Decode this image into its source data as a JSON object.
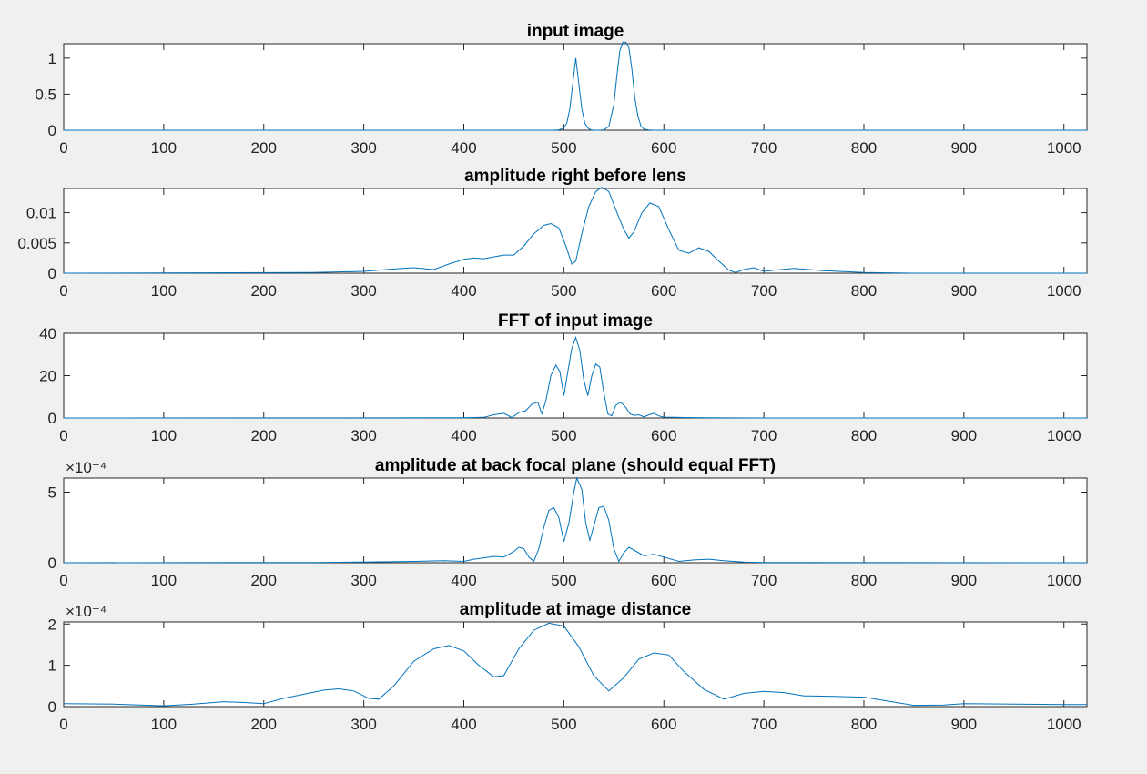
{
  "chart_data": [
    {
      "type": "line",
      "title": "input image",
      "xlim": [
        0,
        1023
      ],
      "ylim": [
        0,
        1.2
      ],
      "xticks": [
        0,
        100,
        200,
        300,
        400,
        500,
        600,
        700,
        800,
        900,
        1000
      ],
      "xtick_labels": [
        "0",
        "100",
        "200",
        "300",
        "400",
        "500",
        "600",
        "700",
        "800",
        "900",
        "1000"
      ],
      "yticks": [
        0,
        0.5,
        1
      ],
      "ytick_labels": [
        "0",
        "0.5",
        "1"
      ],
      "exponent_label": "",
      "color": "#0072bd",
      "series": [
        {
          "x": [
            0,
            490,
            495,
            500,
            503,
            506,
            509,
            512,
            515,
            518,
            521,
            524,
            527,
            530,
            535,
            540,
            545,
            550,
            553,
            556,
            559,
            562,
            565,
            568,
            571,
            574,
            577,
            580,
            585,
            590,
            600,
            1023
          ],
          "y": [
            0,
            0,
            0.005,
            0.03,
            0.1,
            0.3,
            0.65,
            1.0,
            0.65,
            0.3,
            0.1,
            0.03,
            0.005,
            0,
            0,
            0.005,
            0.05,
            0.35,
            0.75,
            1.1,
            1.22,
            1.22,
            1.15,
            0.85,
            0.45,
            0.2,
            0.06,
            0.015,
            0.002,
            0,
            0,
            0
          ]
        }
      ]
    },
    {
      "type": "line",
      "title": "amplitude right before lens",
      "xlim": [
        0,
        1023
      ],
      "ylim": [
        0,
        0.014
      ],
      "xticks": [
        0,
        100,
        200,
        300,
        400,
        500,
        600,
        700,
        800,
        900,
        1000
      ],
      "xtick_labels": [
        "0",
        "100",
        "200",
        "300",
        "400",
        "500",
        "600",
        "700",
        "800",
        "900",
        "1000"
      ],
      "yticks": [
        0,
        0.005,
        0.01
      ],
      "ytick_labels": [
        "0",
        "0.005",
        "0.01"
      ],
      "exponent_label": "",
      "color": "#0072bd",
      "series": [
        {
          "x": [
            0,
            250,
            300,
            330,
            350,
            370,
            385,
            400,
            410,
            420,
            430,
            440,
            450,
            460,
            470,
            480,
            487,
            495,
            502,
            508,
            512,
            518,
            525,
            532,
            538,
            545,
            552,
            560,
            565,
            570,
            578,
            586,
            595,
            605,
            615,
            625,
            635,
            645,
            655,
            665,
            672,
            680,
            690,
            700,
            710,
            730,
            760,
            800,
            850,
            1023
          ],
          "y": [
            0,
            0.0001,
            0.0003,
            0.0007,
            0.0009,
            0.0006,
            0.0015,
            0.0023,
            0.0025,
            0.0024,
            0.0027,
            0.003,
            0.003,
            0.0045,
            0.0065,
            0.0079,
            0.0082,
            0.0075,
            0.0045,
            0.0015,
            0.002,
            0.0065,
            0.011,
            0.0135,
            0.0142,
            0.0135,
            0.0105,
            0.0072,
            0.0058,
            0.0068,
            0.01,
            0.0116,
            0.011,
            0.0072,
            0.0038,
            0.0033,
            0.0042,
            0.0036,
            0.002,
            0.0005,
            0.0001,
            0.0006,
            0.0009,
            0.0003,
            0.0005,
            0.0008,
            0.0004,
            0.0001,
            0,
            0
          ]
        }
      ]
    },
    {
      "type": "line",
      "title": "FFT of input image",
      "xlim": [
        0,
        1023
      ],
      "ylim": [
        0,
        40
      ],
      "xticks": [
        0,
        100,
        200,
        300,
        400,
        500,
        600,
        700,
        800,
        900,
        1000
      ],
      "xtick_labels": [
        "0",
        "100",
        "200",
        "300",
        "400",
        "500",
        "600",
        "700",
        "800",
        "900",
        "1000"
      ],
      "yticks": [
        0,
        20,
        40
      ],
      "ytick_labels": [
        "0",
        "20",
        "40"
      ],
      "exponent_label": "",
      "color": "#0072bd",
      "series": [
        {
          "x": [
            0,
            400,
            420,
            430,
            440,
            448,
            455,
            462,
            468,
            474,
            478,
            482,
            487,
            492,
            496,
            500,
            504,
            508,
            512,
            516,
            520,
            524,
            528,
            532,
            536,
            540,
            544,
            548,
            552,
            557,
            562,
            566,
            570,
            575,
            580,
            585,
            590,
            595,
            600,
            610,
            620,
            640,
            700,
            1023
          ],
          "y": [
            0,
            0.1,
            0.3,
            1.5,
            2.2,
            0.2,
            2.5,
            3.5,
            6.5,
            7.5,
            2.0,
            8.0,
            20.0,
            25.0,
            22.0,
            10.5,
            22.0,
            33.0,
            38.0,
            32.0,
            18.0,
            10.5,
            20.0,
            25.5,
            24.0,
            12.0,
            2.0,
            1.0,
            6.0,
            7.5,
            5.0,
            2.0,
            1.2,
            1.5,
            0.5,
            1.5,
            2.2,
            1.0,
            0.4,
            0.3,
            0.2,
            0.1,
            0,
            0
          ]
        }
      ]
    },
    {
      "type": "line",
      "title": "amplitude at back focal plane (should equal FFT)",
      "xlim": [
        0,
        1023
      ],
      "ylim": [
        0,
        6
      ],
      "xticks": [
        0,
        100,
        200,
        300,
        400,
        500,
        600,
        700,
        800,
        900,
        1000
      ],
      "xtick_labels": [
        "0",
        "100",
        "200",
        "300",
        "400",
        "500",
        "600",
        "700",
        "800",
        "900",
        "1000"
      ],
      "yticks": [
        0,
        5
      ],
      "ytick_labels": [
        "0",
        "5"
      ],
      "exponent_label": "×10⁻⁴",
      "color": "#0072bd",
      "series": [
        {
          "x": [
            0,
            250,
            300,
            350,
            380,
            400,
            410,
            420,
            430,
            440,
            450,
            455,
            460,
            465,
            470,
            475,
            480,
            485,
            490,
            495,
            500,
            505,
            510,
            513,
            518,
            522,
            526,
            530,
            535,
            540,
            545,
            550,
            555,
            560,
            565,
            570,
            580,
            590,
            600,
            615,
            630,
            645,
            660,
            680,
            700,
            750,
            1023
          ],
          "y": [
            0,
            0.02,
            0.05,
            0.1,
            0.15,
            0.1,
            0.25,
            0.35,
            0.45,
            0.4,
            0.8,
            1.1,
            1.0,
            0.4,
            0.1,
            1.0,
            2.5,
            3.7,
            3.9,
            3.2,
            1.5,
            2.8,
            5.0,
            6.0,
            5.2,
            2.8,
            1.6,
            2.6,
            3.9,
            4.0,
            3.0,
            1.0,
            0.1,
            0.7,
            1.1,
            0.9,
            0.5,
            0.6,
            0.4,
            0.1,
            0.2,
            0.25,
            0.15,
            0.05,
            0.02,
            0.01,
            0
          ]
        }
      ]
    },
    {
      "type": "line",
      "title": "amplitude at image distance",
      "xlim": [
        0,
        1023
      ],
      "ylim": [
        0,
        2.05
      ],
      "xticks": [
        0,
        100,
        200,
        300,
        400,
        500,
        600,
        700,
        800,
        900,
        1000
      ],
      "xtick_labels": [
        "0",
        "100",
        "200",
        "300",
        "400",
        "500",
        "600",
        "700",
        "800",
        "900",
        "1000"
      ],
      "yticks": [
        0,
        1,
        2
      ],
      "ytick_labels": [
        "0",
        "1",
        "2"
      ],
      "exponent_label": "×10⁻⁴",
      "color": "#0072bd",
      "series": [
        {
          "x": [
            0,
            50,
            100,
            130,
            160,
            180,
            200,
            220,
            240,
            260,
            275,
            290,
            305,
            315,
            330,
            350,
            370,
            385,
            400,
            415,
            430,
            440,
            455,
            470,
            485,
            500,
            515,
            530,
            545,
            560,
            575,
            590,
            605,
            620,
            640,
            660,
            680,
            700,
            720,
            740,
            770,
            800,
            820,
            850,
            880,
            900,
            950,
            1000,
            1023
          ],
          "y": [
            0.07,
            0.06,
            0.02,
            0.06,
            0.12,
            0.1,
            0.07,
            0.2,
            0.3,
            0.4,
            0.43,
            0.38,
            0.2,
            0.18,
            0.5,
            1.1,
            1.4,
            1.48,
            1.35,
            1.0,
            0.72,
            0.75,
            1.4,
            1.85,
            2.02,
            1.95,
            1.45,
            0.75,
            0.38,
            0.7,
            1.15,
            1.3,
            1.25,
            0.85,
            0.42,
            0.18,
            0.32,
            0.37,
            0.34,
            0.26,
            0.25,
            0.23,
            0.15,
            0.03,
            0.04,
            0.07,
            0.06,
            0.05,
            0.05
          ]
        }
      ]
    }
  ]
}
